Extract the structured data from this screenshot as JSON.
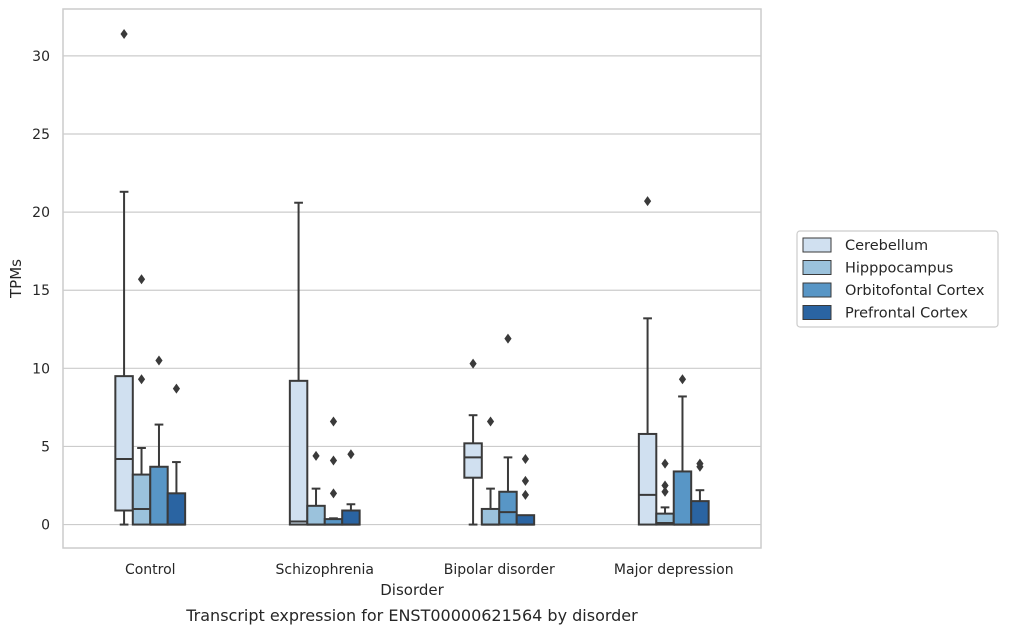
{
  "caption": "Transcript expression for ENST00000621564 by disorder",
  "chart_data": {
    "type": "box",
    "xlabel": "Disorder",
    "ylabel": "TPMs",
    "ylim": [
      -1.5,
      33
    ],
    "yticks": [
      0,
      5,
      10,
      15,
      20,
      25,
      30
    ],
    "grid": true,
    "legend_position": "right",
    "categories": [
      "Control",
      "Schizophrenia",
      "Bipolar disorder",
      "Major depression"
    ],
    "series": [
      {
        "name": "Cerebellum",
        "color": "#d0e0f0",
        "boxes": [
          {
            "whislo": 0,
            "q1": 0.9,
            "med": 4.2,
            "q3": 9.5,
            "whishi": 21.3,
            "fliers": [
              31.4
            ]
          },
          {
            "whislo": 0,
            "q1": 0.0,
            "med": 0.2,
            "q3": 9.2,
            "whishi": 20.6,
            "fliers": []
          },
          {
            "whislo": 0,
            "q1": 3.0,
            "med": 4.3,
            "q3": 5.2,
            "whishi": 7.0,
            "fliers": [
              10.3
            ]
          },
          {
            "whislo": 0,
            "q1": 0.0,
            "med": 1.9,
            "q3": 5.8,
            "whishi": 13.2,
            "fliers": [
              20.7
            ]
          }
        ]
      },
      {
        "name": "Hipppocampus",
        "color": "#9bc2dc",
        "boxes": [
          {
            "whislo": 0,
            "q1": 0.0,
            "med": 1.0,
            "q3": 3.2,
            "whishi": 4.9,
            "fliers": [
              9.3,
              15.7
            ]
          },
          {
            "whislo": 0,
            "q1": 0.0,
            "med": 0.0,
            "q3": 1.2,
            "whishi": 2.3,
            "fliers": [
              4.4
            ]
          },
          {
            "whislo": 0,
            "q1": 0.0,
            "med": 0.0,
            "q3": 1.0,
            "whishi": 2.3,
            "fliers": [
              6.6
            ]
          },
          {
            "whislo": 0,
            "q1": 0.0,
            "med": 0.1,
            "q3": 0.7,
            "whishi": 1.1,
            "fliers": [
              2.1,
              2.5,
              3.9
            ]
          }
        ]
      },
      {
        "name": "Orbitofontal Cortex",
        "color": "#5896c6",
        "boxes": [
          {
            "whislo": 0,
            "q1": 0.0,
            "med": 0.0,
            "q3": 3.7,
            "whishi": 6.4,
            "fliers": [
              10.5
            ]
          },
          {
            "whislo": 0,
            "q1": 0.0,
            "med": 0.0,
            "q3": 0.35,
            "whishi": 0.4,
            "fliers": [
              2.0,
              4.1,
              6.6
            ]
          },
          {
            "whislo": 0,
            "q1": 0.0,
            "med": 0.8,
            "q3": 2.1,
            "whishi": 4.3,
            "fliers": [
              11.9
            ]
          },
          {
            "whislo": 0,
            "q1": 0.0,
            "med": 0.0,
            "q3": 3.4,
            "whishi": 8.2,
            "fliers": [
              9.3
            ]
          }
        ]
      },
      {
        "name": "Prefrontal Cortex",
        "color": "#2a64a2",
        "boxes": [
          {
            "whislo": 0,
            "q1": 0.0,
            "med": 0.0,
            "q3": 2.0,
            "whishi": 4.0,
            "fliers": [
              8.7
            ]
          },
          {
            "whislo": 0,
            "q1": 0.0,
            "med": 0.0,
            "q3": 0.9,
            "whishi": 1.3,
            "fliers": [
              4.5
            ]
          },
          {
            "whislo": 0,
            "q1": 0.0,
            "med": 0.0,
            "q3": 0.6,
            "whishi": 0.6,
            "fliers": [
              1.9,
              2.8,
              4.2
            ]
          },
          {
            "whislo": 0,
            "q1": 0.0,
            "med": 0.0,
            "q3": 1.5,
            "whishi": 2.2,
            "fliers": [
              3.7,
              3.9
            ]
          }
        ]
      }
    ]
  }
}
